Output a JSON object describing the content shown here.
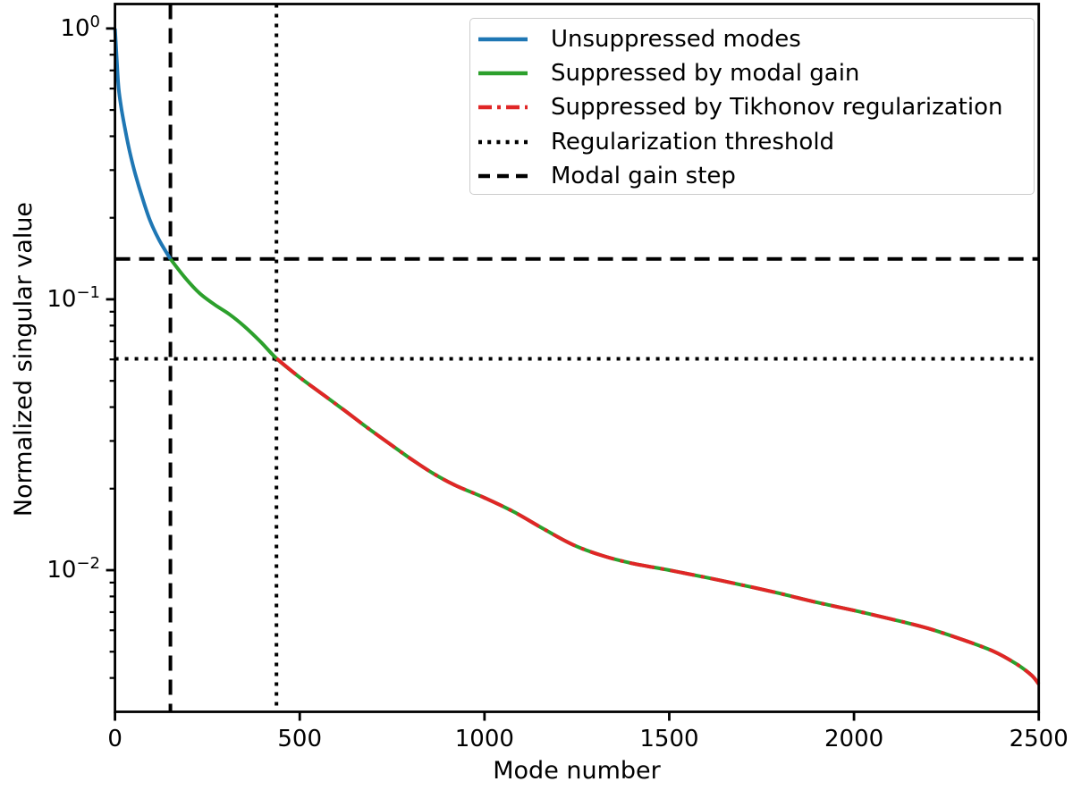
{
  "chart_data": {
    "type": "line",
    "title": "",
    "xlabel": "Mode number",
    "ylabel": "Normalized singular value",
    "grid": false,
    "y_scale": "log",
    "xlim": [
      0,
      2500
    ],
    "ylim": [
      0.003,
      1.231
    ],
    "x_ticks": [
      {
        "label": "0",
        "value": 0
      },
      {
        "label": "500",
        "value": 500
      },
      {
        "label": "1000",
        "value": 1000
      },
      {
        "label": "1500",
        "value": 1500
      },
      {
        "label": "2000",
        "value": 2000
      },
      {
        "label": "2500",
        "value": 2500
      }
    ],
    "y_ticks": [
      {
        "base": "10",
        "exp": "0",
        "value": 1.0
      },
      {
        "base": "10",
        "exp": "−1",
        "value": 0.1
      },
      {
        "base": "10",
        "exp": "−2",
        "value": 0.01
      }
    ],
    "y_minor_ticks": [
      0.9,
      0.8,
      0.7,
      0.6,
      0.5,
      0.4,
      0.3,
      0.2,
      0.09,
      0.08,
      0.07,
      0.06,
      0.05,
      0.04,
      0.03,
      0.02,
      0.009,
      0.008,
      0.007,
      0.006,
      0.005,
      0.004
    ],
    "colors": {
      "blue": "#1f77b4",
      "green": "#2ca02c",
      "red": "#e02626",
      "black": "#000000",
      "legend_border": "#cccccc"
    },
    "series": [
      {
        "name": "Unsuppressed modes",
        "color": "#1f77b4",
        "style": "solid",
        "points": [
          [
            0,
            1.0
          ],
          [
            2,
            0.9
          ],
          [
            5,
            0.76
          ],
          [
            10,
            0.6
          ],
          [
            18,
            0.5
          ],
          [
            28,
            0.42
          ],
          [
            40,
            0.35
          ],
          [
            55,
            0.29
          ],
          [
            75,
            0.235
          ],
          [
            95,
            0.195
          ],
          [
            120,
            0.165
          ],
          [
            150,
            0.141
          ]
        ]
      },
      {
        "name": "Suppressed by modal gain",
        "color": "#2ca02c",
        "style": "solid",
        "points": [
          [
            150,
            0.141
          ],
          [
            190,
            0.12
          ],
          [
            230,
            0.105
          ],
          [
            270,
            0.0955
          ],
          [
            310,
            0.088
          ],
          [
            350,
            0.0795
          ],
          [
            395,
            0.0695
          ],
          [
            437,
            0.0605
          ],
          [
            500,
            0.0515
          ],
          [
            560,
            0.0448
          ],
          [
            620,
            0.039
          ],
          [
            680,
            0.0338
          ],
          [
            740,
            0.0295
          ],
          [
            800,
            0.0258
          ],
          [
            860,
            0.0228
          ],
          [
            920,
            0.0206
          ],
          [
            1000,
            0.0185
          ],
          [
            1080,
            0.0164
          ],
          [
            1160,
            0.0142
          ],
          [
            1240,
            0.0124
          ],
          [
            1320,
            0.0113
          ],
          [
            1400,
            0.0106
          ],
          [
            1500,
            0.01
          ],
          [
            1600,
            0.0094
          ],
          [
            1700,
            0.0088
          ],
          [
            1800,
            0.0082
          ],
          [
            1900,
            0.0076
          ],
          [
            2000,
            0.0071
          ],
          [
            2100,
            0.0066
          ],
          [
            2200,
            0.0061
          ],
          [
            2300,
            0.0055
          ],
          [
            2380,
            0.005
          ],
          [
            2440,
            0.0045
          ],
          [
            2480,
            0.0041
          ],
          [
            2500,
            0.0038
          ]
        ]
      },
      {
        "name": "Suppressed by Tikhonov regularization",
        "color": "#e02626",
        "style": "dashdot",
        "points": [
          [
            437,
            0.0605
          ],
          [
            500,
            0.0515
          ],
          [
            560,
            0.0448
          ],
          [
            620,
            0.039
          ],
          [
            680,
            0.0338
          ],
          [
            740,
            0.0295
          ],
          [
            800,
            0.0258
          ],
          [
            860,
            0.0228
          ],
          [
            920,
            0.0206
          ],
          [
            1000,
            0.0185
          ],
          [
            1080,
            0.0164
          ],
          [
            1160,
            0.0142
          ],
          [
            1240,
            0.0124
          ],
          [
            1320,
            0.0113
          ],
          [
            1400,
            0.0106
          ],
          [
            1500,
            0.01
          ],
          [
            1600,
            0.0094
          ],
          [
            1700,
            0.0088
          ],
          [
            1800,
            0.0082
          ],
          [
            1900,
            0.0076
          ],
          [
            2000,
            0.0071
          ],
          [
            2100,
            0.0066
          ],
          [
            2200,
            0.0061
          ],
          [
            2300,
            0.0055
          ],
          [
            2380,
            0.005
          ],
          [
            2440,
            0.0045
          ],
          [
            2480,
            0.0041
          ],
          [
            2500,
            0.0038
          ]
        ]
      }
    ],
    "reference_lines": [
      {
        "name": "Modal gain step",
        "orientation": "vertical",
        "value": 150,
        "style": "dashed",
        "color": "#000000"
      },
      {
        "name": "Modal gain step",
        "orientation": "horizontal",
        "value": 0.141,
        "style": "dashed",
        "color": "#000000"
      },
      {
        "name": "Regularization threshold",
        "orientation": "vertical",
        "value": 437,
        "style": "dotted",
        "color": "#000000"
      },
      {
        "name": "Regularization threshold",
        "orientation": "horizontal",
        "value": 0.0603,
        "style": "dotted",
        "color": "#000000"
      }
    ],
    "legend_position": "upper right",
    "legend": [
      {
        "label": "Unsuppressed modes",
        "color": "#1f77b4",
        "style": "solid"
      },
      {
        "label": "Suppressed by modal gain",
        "color": "#2ca02c",
        "style": "solid"
      },
      {
        "label": "Suppressed by Tikhonov regularization",
        "color": "#e02626",
        "style": "dashdot"
      },
      {
        "label": "Regularization threshold",
        "color": "#000000",
        "style": "dotted"
      },
      {
        "label": "Modal gain step",
        "color": "#000000",
        "style": "dashed"
      }
    ]
  }
}
